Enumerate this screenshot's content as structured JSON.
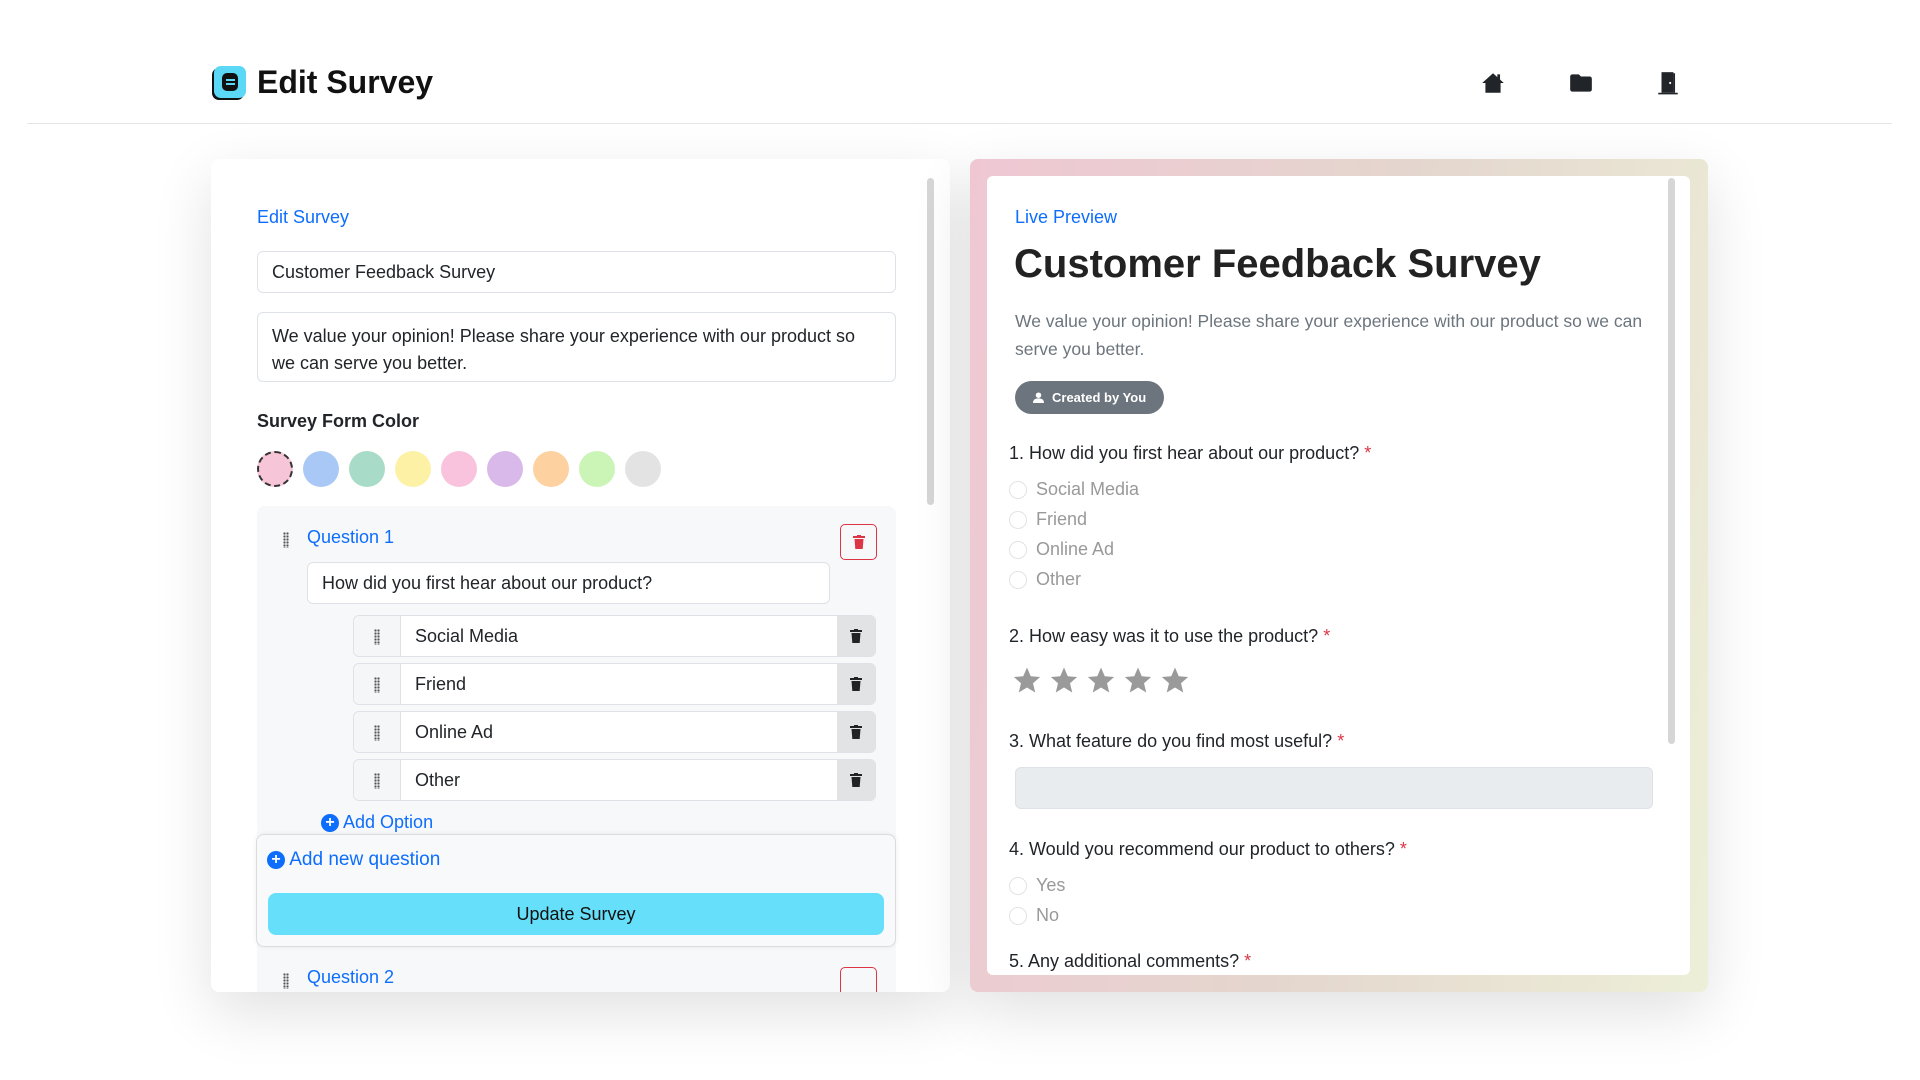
{
  "header": {
    "title": "Edit Survey",
    "nav": [
      "home-icon",
      "folder-icon",
      "door-exit-icon"
    ]
  },
  "editor": {
    "section_label": "Edit Survey",
    "title_value": "Customer Feedback Survey",
    "description_value": "We value your opinion! Please share your experience with our product so we can serve you better.",
    "color_label": "Survey Form Color",
    "colors": [
      "#f7c5d8",
      "#a9c8f5",
      "#a9dcc8",
      "#fdf1a6",
      "#f9c3dd",
      "#d9b8ea",
      "#fdd1a0",
      "#cbf5b6",
      "#e3e3e3"
    ],
    "question": {
      "label": "Question 1",
      "text": "How did you first hear about our product?",
      "options": [
        "Social Media",
        "Friend",
        "Online Ad",
        "Other"
      ],
      "add_option": "Add Option"
    },
    "question2_label": "Question 2",
    "add_question": "Add new question",
    "update_button": "Update Survey"
  },
  "preview": {
    "label": "Live Preview",
    "title": "Customer Feedback Survey",
    "description": "We value your opinion! Please share your experience with our product so we can serve you better.",
    "badge": "Created by You",
    "q1": "1. How did you first hear about our product?",
    "q1_options": [
      "Social Media",
      "Friend",
      "Online Ad",
      "Other"
    ],
    "q2": "2. How easy was it to use the product?",
    "q2_stars": 5,
    "q3": "3. What feature do you find most useful?",
    "q4": "4. Would you recommend our product to others?",
    "q4_options": [
      "Yes",
      "No"
    ],
    "q5": "5. Any additional comments?",
    "required_mark": "*"
  }
}
